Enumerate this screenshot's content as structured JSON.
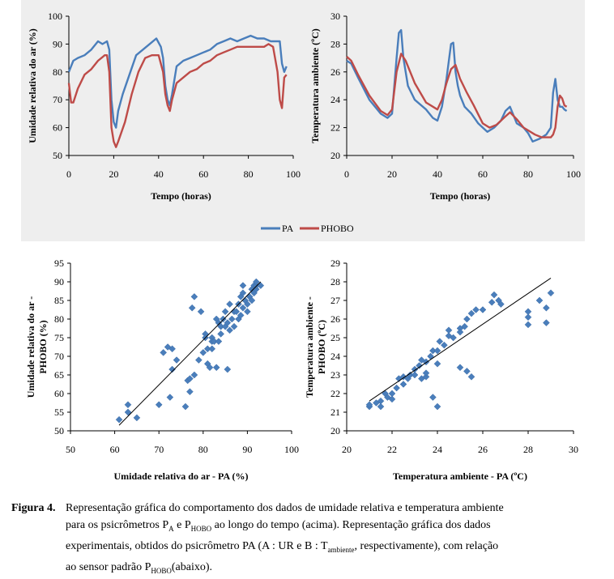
{
  "chart_data": [
    {
      "id": "rh-time",
      "type": "line",
      "title": "",
      "xlabel": "Tempo (horas)",
      "ylabel": "Umidade relativa do ar (%)",
      "xlim": [
        0,
        100
      ],
      "ylim": [
        50,
        100
      ],
      "xticks": [
        "0",
        "20",
        "40",
        "60",
        "80",
        "100"
      ],
      "yticks": [
        "50",
        "60",
        "70",
        "80",
        "90",
        "100"
      ],
      "series": [
        {
          "name": "PA",
          "color": "#4a7ebb",
          "x": [
            0,
            2,
            4,
            7,
            10,
            13,
            15,
            17,
            18,
            19,
            20,
            21,
            22,
            24,
            27,
            30,
            33,
            36,
            39,
            41,
            42,
            43,
            44,
            45,
            46,
            48,
            51,
            54,
            57,
            60,
            63,
            66,
            69,
            72,
            75,
            78,
            81,
            84,
            87,
            90,
            92,
            94,
            95,
            96,
            97
          ],
          "y": [
            80,
            84,
            85,
            86,
            88,
            91,
            90,
            91,
            88,
            70,
            62,
            60,
            66,
            72,
            79,
            86,
            88,
            90,
            92,
            89,
            85,
            75,
            70,
            68,
            72,
            82,
            84,
            85,
            86,
            87,
            88,
            90,
            91,
            92,
            91,
            92,
            93,
            92,
            92,
            91,
            91,
            91,
            83,
            80,
            82
          ]
        },
        {
          "name": "PHOBO",
          "color": "#be4b48",
          "x": [
            0,
            1,
            2,
            4,
            7,
            10,
            13,
            16,
            17,
            18,
            19,
            20,
            21,
            22,
            25,
            28,
            31,
            34,
            37,
            40,
            42,
            43,
            44,
            45,
            46,
            48,
            51,
            54,
            57,
            60,
            63,
            66,
            69,
            72,
            75,
            78,
            81,
            84,
            87,
            89,
            91,
            93,
            94,
            95,
            96,
            97
          ],
          "y": [
            76,
            69,
            69,
            74,
            79,
            81,
            84,
            86,
            86,
            80,
            60,
            55,
            53,
            55,
            62,
            72,
            80,
            85,
            86,
            86,
            80,
            72,
            68,
            66,
            70,
            76,
            78,
            80,
            81,
            83,
            84,
            86,
            87,
            88,
            89,
            89,
            89,
            89,
            89,
            90,
            89,
            80,
            70,
            67,
            78,
            79
          ]
        }
      ],
      "legend": [
        "PA",
        "PHOBO"
      ]
    },
    {
      "id": "temp-time",
      "type": "line",
      "title": "",
      "xlabel": "Tempo (horas)",
      "ylabel": "Temperatura ambiente (ºC)",
      "xlim": [
        0,
        100
      ],
      "ylim": [
        20,
        30
      ],
      "xticks": [
        "0",
        "20",
        "40",
        "60",
        "80",
        "100"
      ],
      "yticks": [
        "20",
        "22",
        "24",
        "26",
        "28",
        "30"
      ],
      "series": [
        {
          "name": "PA",
          "color": "#4a7ebb",
          "x": [
            0,
            2,
            5,
            10,
            15,
            18,
            20,
            21,
            22,
            23,
            24,
            25,
            27,
            30,
            35,
            38,
            40,
            42,
            44,
            46,
            47,
            48,
            49,
            50,
            52,
            55,
            58,
            60,
            62,
            65,
            68,
            70,
            72,
            75,
            78,
            80,
            82,
            85,
            88,
            90,
            91,
            92,
            93,
            94,
            95,
            96,
            97
          ],
          "y": [
            26.8,
            26.6,
            25.6,
            24,
            23,
            22.7,
            23,
            25,
            27,
            28.8,
            29,
            27,
            25,
            24,
            23.3,
            22.7,
            22.5,
            23.5,
            25.5,
            28,
            28.1,
            26,
            25,
            24.3,
            23.5,
            23,
            22.3,
            22,
            21.7,
            22,
            22.5,
            23.2,
            23.5,
            22.3,
            22,
            21.6,
            21,
            21.2,
            21.5,
            22,
            24.5,
            25.5,
            24,
            23.5,
            23.5,
            23.3,
            23.2
          ]
        },
        {
          "name": "PHOBO",
          "color": "#be4b48",
          "x": [
            0,
            2,
            5,
            10,
            15,
            18,
            20,
            22,
            24,
            26,
            30,
            35,
            40,
            42,
            44,
            46,
            48,
            50,
            53,
            56,
            60,
            63,
            66,
            70,
            72,
            75,
            78,
            80,
            83,
            86,
            88,
            90,
            91,
            92,
            93,
            94,
            95,
            96,
            97
          ],
          "y": [
            27.1,
            26.8,
            25.8,
            24.3,
            23.2,
            22.9,
            23.3,
            26,
            27.3,
            26.8,
            25.2,
            23.8,
            23.3,
            24,
            25.2,
            26.2,
            26.5,
            25.5,
            24.5,
            23.6,
            22.3,
            22,
            22.2,
            22.8,
            23.1,
            22.6,
            22,
            21.8,
            21.5,
            21.3,
            21.3,
            21.3,
            21.5,
            22,
            23.5,
            24.3,
            24.1,
            23.6,
            23.5
          ]
        }
      ],
      "legend": [
        "PA",
        "PHOBO"
      ]
    },
    {
      "id": "rh-scatter",
      "type": "scatter",
      "title": "",
      "xlabel": "Umidade relativa do ar - PA (%)",
      "ylabel": "Umidade relativa do ar - PHOBO (%)",
      "xlim": [
        50,
        100
      ],
      "ylim": [
        50,
        95
      ],
      "xticks": [
        "50",
        "60",
        "70",
        "80",
        "90",
        "100"
      ],
      "yticks": [
        "50",
        "55",
        "60",
        "65",
        "70",
        "75",
        "80",
        "85",
        "90",
        "95"
      ],
      "color": "#4a7ebb",
      "points": [
        [
          61,
          53
        ],
        [
          63,
          57
        ],
        [
          63,
          55
        ],
        [
          65,
          53.5
        ],
        [
          70,
          57
        ],
        [
          71,
          71
        ],
        [
          72,
          72.5
        ],
        [
          72.5,
          59
        ],
        [
          73,
          72
        ],
        [
          73,
          66.5
        ],
        [
          74,
          69
        ],
        [
          76,
          56.5
        ],
        [
          76.5,
          63.5
        ],
        [
          77,
          60.5
        ],
        [
          77,
          64
        ],
        [
          77.5,
          83
        ],
        [
          78,
          86
        ],
        [
          78,
          65
        ],
        [
          79,
          69
        ],
        [
          79.5,
          82
        ],
        [
          80,
          71
        ],
        [
          80.5,
          76
        ],
        [
          80.5,
          75
        ],
        [
          81,
          72
        ],
        [
          81,
          68
        ],
        [
          81.5,
          67
        ],
        [
          82,
          75
        ],
        [
          82,
          72
        ],
        [
          82,
          74
        ],
        [
          82.5,
          74
        ],
        [
          83,
          67
        ],
        [
          83,
          80
        ],
        [
          83.5,
          79
        ],
        [
          83.5,
          74
        ],
        [
          84,
          78
        ],
        [
          84,
          76
        ],
        [
          84.5,
          80
        ],
        [
          85,
          82
        ],
        [
          85,
          78
        ],
        [
          85.5,
          79
        ],
        [
          85.5,
          66.5
        ],
        [
          86,
          84
        ],
        [
          86,
          77
        ],
        [
          86.5,
          80
        ],
        [
          87,
          82
        ],
        [
          87,
          78
        ],
        [
          87.5,
          82
        ],
        [
          88,
          80
        ],
        [
          88,
          84
        ],
        [
          88.5,
          86
        ],
        [
          88.5,
          81
        ],
        [
          89,
          87
        ],
        [
          89,
          83
        ],
        [
          89,
          89
        ],
        [
          89.5,
          85
        ],
        [
          90,
          82
        ],
        [
          90,
          84
        ],
        [
          90.5,
          86
        ],
        [
          91,
          85
        ],
        [
          91,
          88
        ],
        [
          91.5,
          89
        ],
        [
          91.5,
          87
        ],
        [
          92,
          88
        ],
        [
          92,
          89
        ],
        [
          92,
          90
        ],
        [
          93,
          89
        ]
      ],
      "fit": [
        [
          61,
          51.5
        ],
        [
          93,
          90
        ]
      ]
    },
    {
      "id": "temp-scatter",
      "type": "scatter",
      "title": "",
      "xlabel": "Temperatura ambiente - PA (ºC)",
      "ylabel": "Temperatura ambiente - PHOBO (ºC)",
      "xlim": [
        20,
        30
      ],
      "ylim": [
        20,
        29
      ],
      "xticks": [
        "20",
        "22",
        "24",
        "26",
        "28",
        "30"
      ],
      "yticks": [
        "20",
        "21",
        "22",
        "23",
        "24",
        "25",
        "26",
        "27",
        "28",
        "29"
      ],
      "color": "#4a7ebb",
      "points": [
        [
          21,
          21.3
        ],
        [
          21,
          21.4
        ],
        [
          21.3,
          21.5
        ],
        [
          21.5,
          21.3
        ],
        [
          21.5,
          21.6
        ],
        [
          21.7,
          22
        ],
        [
          21.8,
          21.8
        ],
        [
          22,
          22
        ],
        [
          22,
          21.7
        ],
        [
          22.2,
          22.3
        ],
        [
          22.3,
          22.8
        ],
        [
          22.5,
          22.5
        ],
        [
          22.5,
          22.9
        ],
        [
          22.7,
          22.8
        ],
        [
          22.8,
          23
        ],
        [
          23,
          23
        ],
        [
          23,
          23.3
        ],
        [
          23.2,
          23.5
        ],
        [
          23.3,
          23.8
        ],
        [
          23.3,
          22.8
        ],
        [
          23.5,
          23.7
        ],
        [
          23.5,
          22.9
        ],
        [
          23.5,
          23.1
        ],
        [
          23.7,
          24
        ],
        [
          23.8,
          24.3
        ],
        [
          23.8,
          21.8
        ],
        [
          24,
          23.6
        ],
        [
          24,
          24.3
        ],
        [
          24.1,
          24.8
        ],
        [
          24.3,
          24.6
        ],
        [
          24.5,
          25.1
        ],
        [
          24.5,
          25.4
        ],
        [
          24.7,
          25
        ],
        [
          25,
          25.5
        ],
        [
          25,
          25.3
        ],
        [
          25,
          23.4
        ],
        [
          25.2,
          25.6
        ],
        [
          25.3,
          26
        ],
        [
          25.3,
          23.2
        ],
        [
          25.5,
          26.3
        ],
        [
          25.5,
          22.9
        ],
        [
          25.7,
          26.5
        ],
        [
          26,
          26.5
        ],
        [
          26.4,
          26.9
        ],
        [
          26.5,
          27.3
        ],
        [
          26.7,
          27
        ],
        [
          26.8,
          26.8
        ],
        [
          28.8,
          25.8
        ],
        [
          28,
          25.7
        ],
        [
          28,
          26.1
        ],
        [
          28,
          26.4
        ],
        [
          28.5,
          27
        ],
        [
          28.8,
          26.6
        ],
        [
          29,
          27.4
        ],
        [
          24,
          21.3
        ]
      ],
      "fit": [
        [
          21,
          21.6
        ],
        [
          29,
          28.2
        ]
      ]
    }
  ],
  "legend": {
    "pa": "PA",
    "phobo": "PHOBO",
    "pa_color": "#4a7ebb",
    "phobo_color": "#be4b48"
  },
  "caption": {
    "lead": "Figura 4.",
    "l1": "Representação gráfica do comportamento dos dados de umidade relativa e temperatura ambiente",
    "l2a": "para os psicrômetros P",
    "l2sub1": "A",
    "l2b": " e P",
    "l2sub2": "HOBO",
    "l2c": " ao longo do tempo (acima). Representação gráfica dos dados",
    "l3a": "experimentais, obtidos do psicrômetro PA (A : UR e B : T",
    "l3sub": "ambiente",
    "l3b": ", respectivamente), com relação",
    "l4a": "ao sensor padrão P",
    "l4sub": "HOBO",
    "l4b": "(abaixo)."
  }
}
